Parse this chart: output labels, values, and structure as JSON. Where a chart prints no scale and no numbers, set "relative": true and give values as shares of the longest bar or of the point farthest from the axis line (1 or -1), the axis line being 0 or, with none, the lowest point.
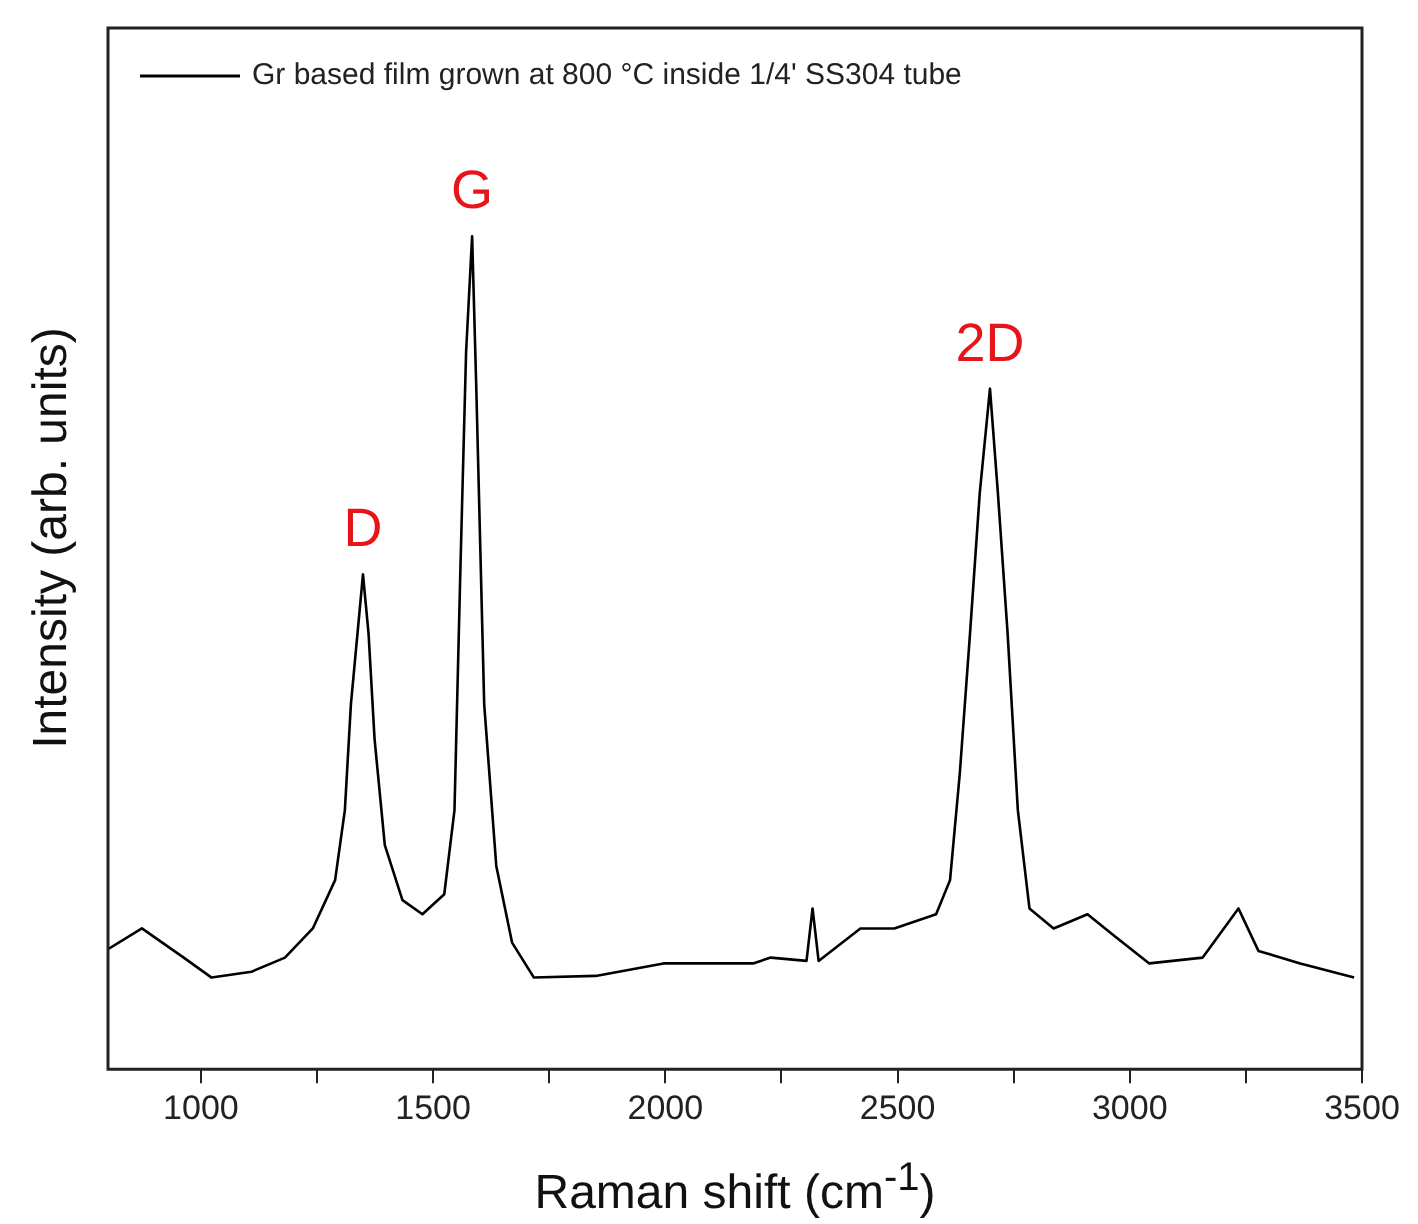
{
  "chart_data": {
    "type": "line",
    "relative": true,
    "xlabel": "Raman shift (cm$^{-1}$)",
    "ylabel": "Intensity (arb. units)",
    "xlim": [
      800,
      3500
    ],
    "xticks": [
      1000,
      {
        "value": 1250,
        "label": null
      },
      1500,
      {
        "value": 1750,
        "label": null
      },
      2000,
      {
        "value": 2250,
        "label": null
      },
      2500,
      {
        "value": 2750,
        "label": null
      },
      3000,
      {
        "value": 3250,
        "label": null
      },
      3500
    ],
    "tick_labels": "x",
    "legend": "top left",
    "grid": false,
    "marker": "none",
    "line_style": "solid",
    "series": [
      {
        "name": "Gr based film grown at 800 °C inside 1/4' SS304 tube",
        "color": "#000000",
        "x": [
          800,
          873,
          963,
          1023,
          1109,
          1181,
          1241,
          1289,
          1310,
          1323,
          1340,
          1349,
          1361,
          1374,
          1396,
          1434,
          1477,
          1524,
          1546,
          1559,
          1571,
          1584,
          1593,
          1610,
          1636,
          1670,
          1717,
          1850,
          1996,
          2189,
          2227,
          2304,
          2317,
          2330,
          2420,
          2493,
          2583,
          2613,
          2634,
          2656,
          2677,
          2699,
          2716,
          2737,
          2759,
          2784,
          2836,
          2909,
          2969,
          3042,
          3157,
          3234,
          3277,
          3367,
          3483
        ],
        "values": [
          0.144,
          0.169,
          0.134,
          0.11,
          0.117,
          0.134,
          0.169,
          0.227,
          0.311,
          0.438,
          0.54,
          0.594,
          0.523,
          0.396,
          0.269,
          0.203,
          0.186,
          0.21,
          0.311,
          0.606,
          0.861,
          1.0,
          0.817,
          0.438,
          0.244,
          0.152,
          0.11,
          0.112,
          0.127,
          0.127,
          0.134,
          0.13,
          0.193,
          0.13,
          0.169,
          0.169,
          0.186,
          0.227,
          0.355,
          0.523,
          0.692,
          0.817,
          0.692,
          0.523,
          0.311,
          0.193,
          0.169,
          0.186,
          0.159,
          0.127,
          0.134,
          0.193,
          0.142,
          0.127,
          0.11
        ]
      }
    ],
    "annotations": [
      {
        "text": "D",
        "x": 1349,
        "y": 0.594
      },
      {
        "text": "G",
        "x": 1584,
        "y": 1.0
      },
      {
        "text": "2D",
        "x": 2699,
        "y": 0.817
      }
    ]
  }
}
